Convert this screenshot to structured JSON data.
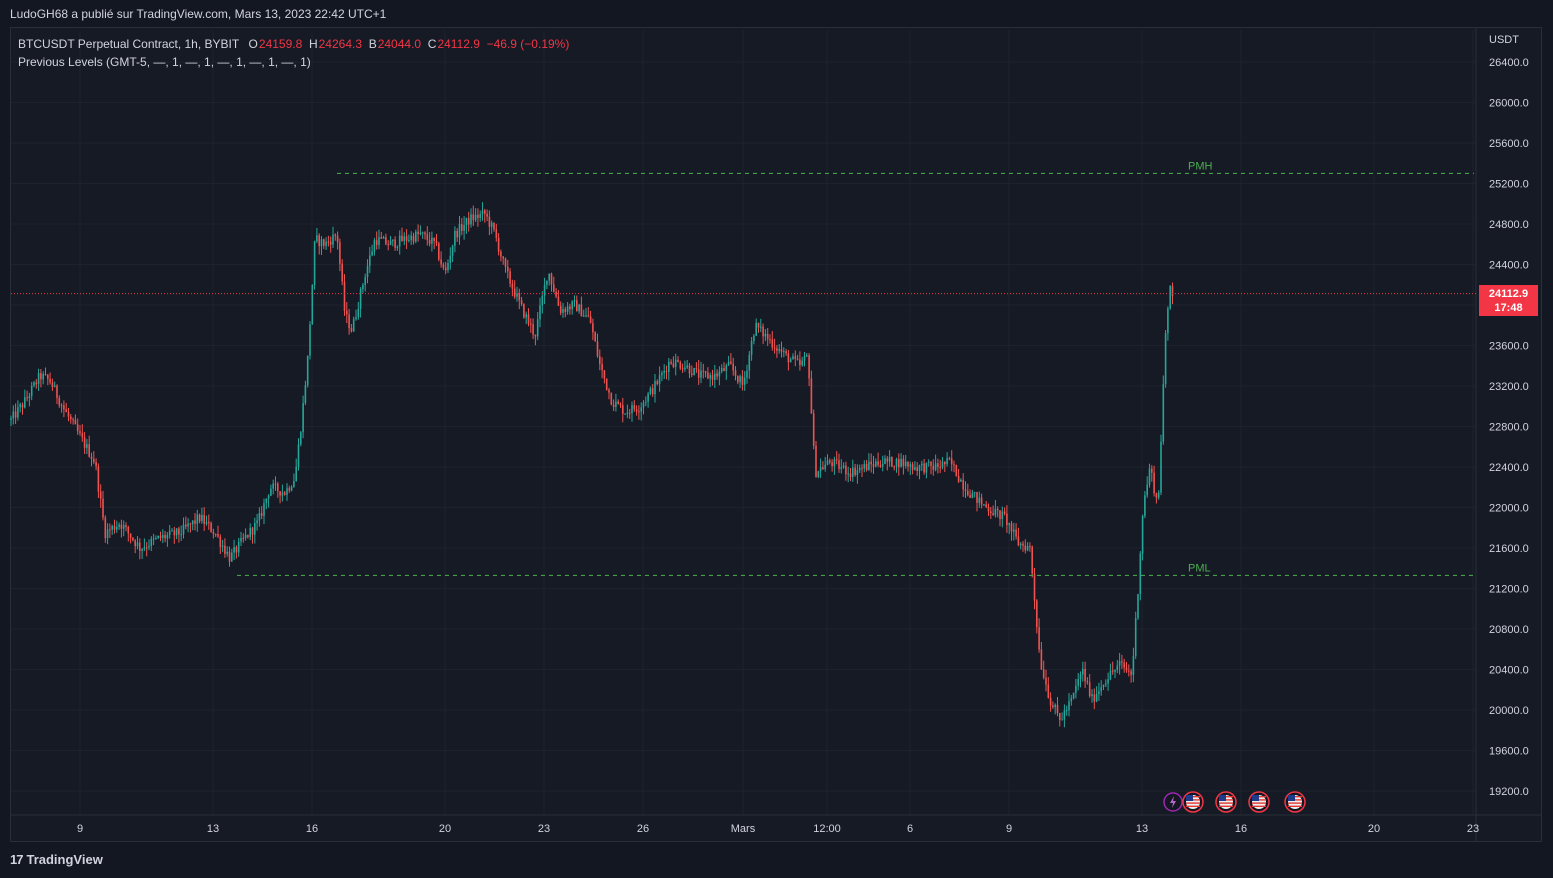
{
  "header": {
    "published": "LudoGH68 a publié sur TradingView.com, Mars 13, 2023 22:42 UTC+1"
  },
  "legend": {
    "symbol": "BTCUSDT Perpetual Contract, 1h, BYBIT",
    "open_label": "O",
    "open": "24159.8",
    "high_label": "H",
    "high": "24264.3",
    "low_label": "B",
    "low": "24044.0",
    "close_label": "C",
    "close": "24112.9",
    "change": "−46.9 (−0.19%)",
    "indicator": "Previous Levels (GMT-5, —, 1, —, 1, —, 1, —, 1, —, 1)"
  },
  "price_axis": {
    "unit": "USDT",
    "current_price": "24112.9",
    "countdown": "17:48"
  },
  "footer": {
    "brand": "TradingView",
    "logo": "17"
  },
  "colors": {
    "up": "#26a69a",
    "down": "#ef5350",
    "level": "#4caf50",
    "bg": "#161a25",
    "last": "#f23645"
  },
  "event_icons": [
    "lightning-icon",
    "us-flag-icon",
    "us-flag-icon",
    "us-flag-icon",
    "us-flag-icon"
  ],
  "chart_data": {
    "type": "candlestick",
    "ylim": [
      19000,
      26700
    ],
    "y_ticks": [
      19200,
      19600,
      20000,
      20400,
      20800,
      21200,
      21600,
      22000,
      22400,
      22800,
      23200,
      23600,
      24000,
      24400,
      24800,
      25200,
      25600,
      26000,
      26400
    ],
    "x_ticks": [
      "9",
      "13",
      "16",
      "20",
      "23",
      "26",
      "Mars",
      "12:00",
      "6",
      "9",
      "13",
      "16",
      "20",
      "23"
    ],
    "levels": [
      {
        "name": "PMH",
        "value": 25300
      },
      {
        "name": "PML",
        "value": 21330
      }
    ],
    "last_price": 24112.9,
    "path": [
      [
        0,
        23000
      ],
      [
        10,
        22850
      ],
      [
        25,
        23050
      ],
      [
        40,
        23300
      ],
      [
        50,
        23250
      ],
      [
        65,
        22950
      ],
      [
        80,
        22700
      ],
      [
        95,
        22450
      ],
      [
        105,
        21750
      ],
      [
        120,
        21850
      ],
      [
        140,
        21600
      ],
      [
        160,
        21700
      ],
      [
        180,
        21750
      ],
      [
        200,
        21900
      ],
      [
        215,
        21750
      ],
      [
        230,
        21500
      ],
      [
        245,
        21700
      ],
      [
        258,
        21850
      ],
      [
        270,
        22200
      ],
      [
        285,
        22150
      ],
      [
        295,
        22300
      ],
      [
        302,
        22900
      ],
      [
        308,
        23500
      ],
      [
        315,
        24650
      ],
      [
        325,
        24600
      ],
      [
        337,
        24700
      ],
      [
        345,
        23900
      ],
      [
        352,
        23750
      ],
      [
        365,
        24300
      ],
      [
        375,
        24650
      ],
      [
        390,
        24600
      ],
      [
        405,
        24650
      ],
      [
        420,
        24700
      ],
      [
        435,
        24600
      ],
      [
        445,
        24300
      ],
      [
        455,
        24700
      ],
      [
        470,
        24850
      ],
      [
        485,
        24900
      ],
      [
        495,
        24700
      ],
      [
        505,
        24350
      ],
      [
        520,
        24000
      ],
      [
        535,
        23700
      ],
      [
        548,
        24350
      ],
      [
        560,
        23950
      ],
      [
        575,
        24000
      ],
      [
        590,
        23850
      ],
      [
        600,
        23400
      ],
      [
        612,
        23050
      ],
      [
        625,
        22950
      ],
      [
        640,
        23000
      ],
      [
        655,
        23200
      ],
      [
        670,
        23450
      ],
      [
        685,
        23400
      ],
      [
        700,
        23300
      ],
      [
        715,
        23300
      ],
      [
        730,
        23400
      ],
      [
        743,
        23200
      ],
      [
        755,
        23800
      ],
      [
        770,
        23650
      ],
      [
        785,
        23500
      ],
      [
        800,
        23400
      ],
      [
        808,
        23500
      ],
      [
        815,
        22350
      ],
      [
        830,
        22450
      ],
      [
        850,
        22350
      ],
      [
        865,
        22400
      ],
      [
        880,
        22450
      ],
      [
        900,
        22450
      ],
      [
        915,
        22400
      ],
      [
        935,
        22400
      ],
      [
        950,
        22450
      ],
      [
        965,
        22200
      ],
      [
        980,
        22050
      ],
      [
        995,
        21950
      ],
      [
        1005,
        21900
      ],
      [
        1018,
        21650
      ],
      [
        1030,
        21600
      ],
      [
        1040,
        20500
      ],
      [
        1050,
        20100
      ],
      [
        1060,
        19900
      ],
      [
        1072,
        20100
      ],
      [
        1082,
        20400
      ],
      [
        1092,
        20100
      ],
      [
        1105,
        20300
      ],
      [
        1120,
        20450
      ],
      [
        1132,
        20350
      ],
      [
        1138,
        21200
      ],
      [
        1143,
        22000
      ],
      [
        1150,
        22400
      ],
      [
        1158,
        22000
      ],
      [
        1165,
        23600
      ],
      [
        1170,
        24200
      ],
      [
        1173,
        24113
      ]
    ]
  }
}
